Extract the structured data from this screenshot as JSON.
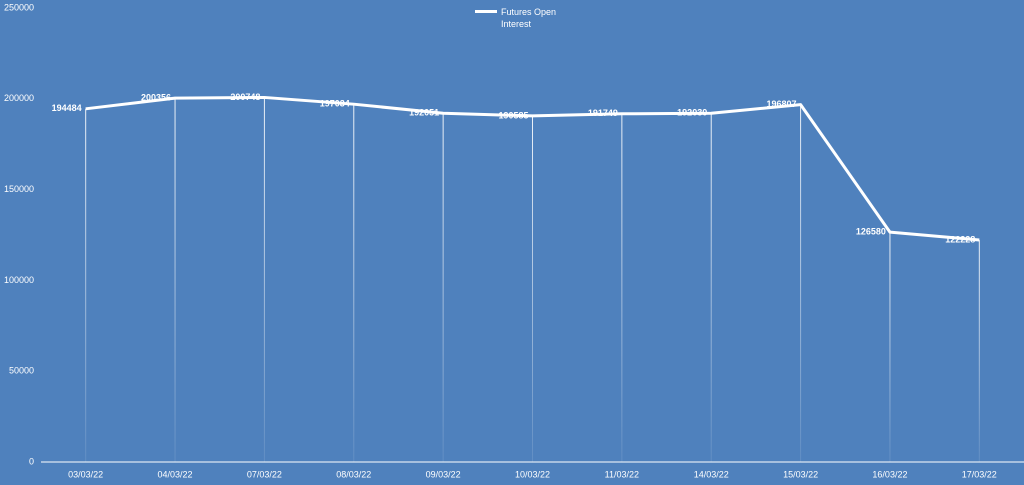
{
  "chart_data": {
    "type": "line",
    "categories": [
      "03/03/22",
      "04/03/22",
      "07/03/22",
      "08/03/22",
      "09/03/22",
      "10/03/22",
      "11/03/22",
      "14/03/22",
      "15/03/22",
      "16/03/22",
      "17/03/22"
    ],
    "series": [
      {
        "name": "Futures Open Interest",
        "color": "#ffffff",
        "values": [
          194484,
          200356,
          200748,
          197034,
          192051,
          190585,
          191749,
          192030,
          196807,
          126580,
          122228
        ]
      }
    ],
    "ylim": [
      0,
      250000
    ],
    "yticks": [
      0,
      50000,
      100000,
      150000,
      200000,
      250000
    ],
    "legend": "top"
  }
}
